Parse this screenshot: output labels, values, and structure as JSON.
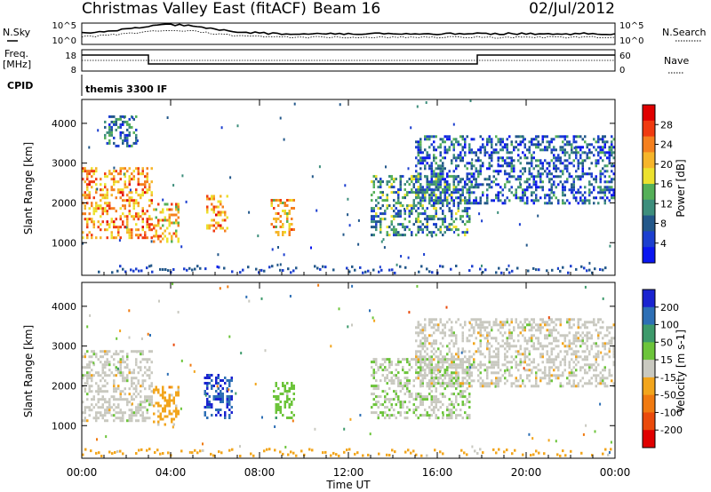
{
  "header": {
    "title": "Christmas Valley East (fitACF)",
    "beam": "Beam 16",
    "date": "02/Jul/2012"
  },
  "summary": {
    "nsky_label": "N.Sky",
    "nsearch_label": "N.Search",
    "nsky_ticks": [
      "10^5",
      "10^0"
    ],
    "nsearch_ticks": [
      "10^5",
      "10^0"
    ],
    "freq_label_1": "Freq.",
    "freq_label_2": "[MHz]",
    "freq_ticks": [
      "18",
      "8"
    ],
    "nave_label": "Nave",
    "nave_ticks": [
      "60",
      "0"
    ],
    "cpid_label": "CPID",
    "cpid_value": "themis 3300 IF"
  },
  "chart_data": [
    {
      "type": "heatmap",
      "name": "power",
      "ylabel": "Slant Range [km]",
      "ylim": [
        180,
        4600
      ],
      "yticks": [
        1000,
        2000,
        3000,
        4000
      ],
      "colorbar": {
        "label": "Power [dB]",
        "ticks": [
          "28",
          "24",
          "20",
          "16",
          "12",
          "8",
          "4"
        ],
        "colors": [
          "#e00000",
          "#f03a10",
          "#f5801f",
          "#f6b52a",
          "#ece12e",
          "#55b058",
          "#3d8e7c",
          "#23588a",
          "#1c3fcf",
          "#0a16f0"
        ]
      },
      "backscatter_regions": [
        {
          "t": [
            0.0,
            3.2
          ],
          "range_km": [
            1100,
            2900
          ],
          "value_db": 24
        },
        {
          "t": [
            3.2,
            4.4
          ],
          "range_km": [
            1050,
            2000
          ],
          "value_db": 22
        },
        {
          "t": [
            5.6,
            6.5
          ],
          "range_km": [
            1300,
            2200
          ],
          "value_db": 24
        },
        {
          "t": [
            8.5,
            9.6
          ],
          "range_km": [
            1200,
            2100
          ],
          "value_db": 22
        },
        {
          "t": [
            1.0,
            2.5
          ],
          "range_km": [
            3400,
            4200
          ],
          "value_db": 10
        },
        {
          "t": [
            13.0,
            17.5
          ],
          "range_km": [
            1200,
            2700
          ],
          "value_db": 12
        },
        {
          "t": [
            15.0,
            24.0
          ],
          "range_km": [
            2000,
            3700
          ],
          "value_db": 8
        }
      ]
    },
    {
      "type": "heatmap",
      "name": "velocity",
      "xlabel": "Time UT",
      "ylabel": "Slant Range [km]",
      "xlim": [
        0,
        24
      ],
      "xticks": [
        "00:00",
        "04:00",
        "08:00",
        "12:00",
        "16:00",
        "20:00",
        "00:00"
      ],
      "ylim": [
        180,
        4600
      ],
      "yticks": [
        1000,
        2000,
        3000,
        4000
      ],
      "colorbar": {
        "label": "Velocity [m s-1]",
        "ticks": [
          "200",
          "100",
          "50",
          "15",
          "-15",
          "-50",
          "-100",
          "-200"
        ],
        "colors": [
          "#1a23d0",
          "#2d6fb5",
          "#3d9a6b",
          "#6cc43a",
          "#c9c9c0",
          "#f2a51c",
          "#f07a10",
          "#ea4a0b",
          "#e00000"
        ]
      },
      "backscatter_regions": [
        {
          "t": [
            0.0,
            3.2
          ],
          "range_km": [
            1100,
            2900
          ],
          "value_ms": 0
        },
        {
          "t": [
            3.2,
            4.4
          ],
          "range_km": [
            1050,
            2000
          ],
          "value_ms": -60
        },
        {
          "t": [
            5.5,
            6.8
          ],
          "range_km": [
            1200,
            2300
          ],
          "value_ms": 220
        },
        {
          "t": [
            8.6,
            9.6
          ],
          "range_km": [
            1200,
            2100
          ],
          "value_ms": 60
        },
        {
          "t": [
            13.0,
            17.5
          ],
          "range_km": [
            1200,
            2700
          ],
          "value_ms": 20
        },
        {
          "t": [
            15.0,
            24.0
          ],
          "range_km": [
            2000,
            3700
          ],
          "value_ms": 0
        }
      ]
    }
  ]
}
